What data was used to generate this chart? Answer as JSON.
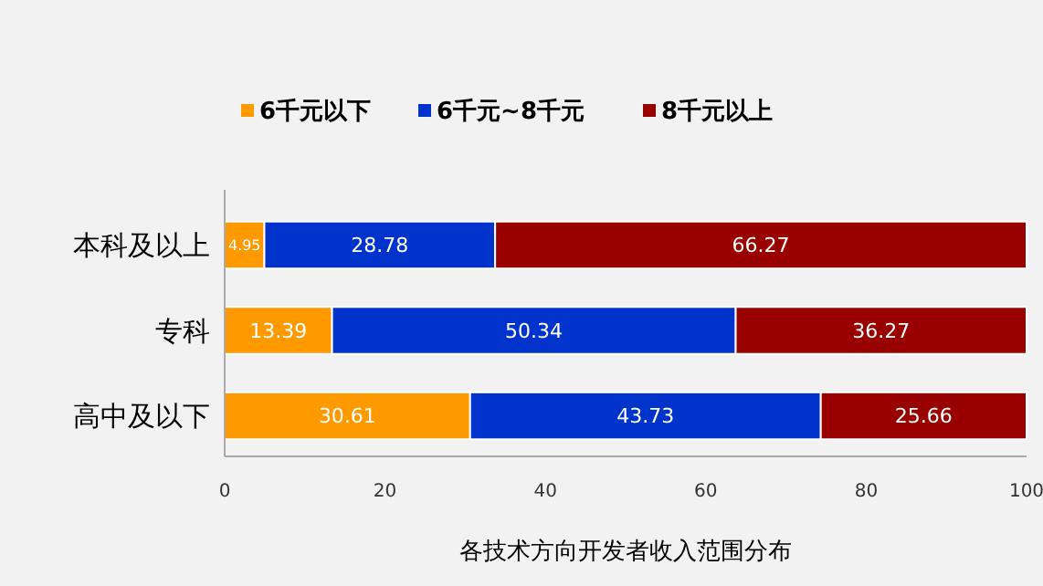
{
  "chart_data": {
    "type": "bar",
    "orientation": "horizontal",
    "stacked": true,
    "title": "各技术方向开发者收入范围分布",
    "categories": [
      "本科及以上",
      "专科",
      "高中及以下"
    ],
    "series": [
      {
        "name": "6千元以下",
        "color": "#ff9900",
        "values": [
          4.95,
          13.39,
          30.61
        ]
      },
      {
        "name": "6千元~8千元",
        "color": "#0033cc",
        "values": [
          28.78,
          50.34,
          43.73
        ]
      },
      {
        "name": "8千元以上",
        "color": "#990000",
        "values": [
          66.27,
          36.27,
          25.66
        ]
      }
    ],
    "xlim": [
      0,
      100
    ],
    "xticks": [
      0,
      20,
      40,
      60,
      80,
      100
    ],
    "data_labels": true,
    "legend": "top",
    "grid": false
  }
}
